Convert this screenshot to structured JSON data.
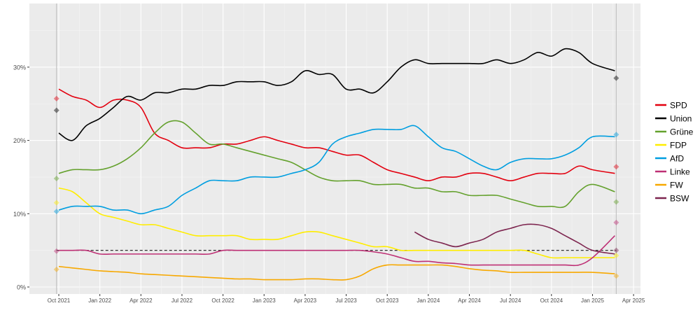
{
  "chart_data": {
    "type": "line",
    "title": "",
    "xlabel": "",
    "ylabel": "",
    "ylim": [
      0,
      38
    ],
    "y_ticks": [
      "0%",
      "10%",
      "20%",
      "30%"
    ],
    "y_tick_values": [
      0,
      10,
      20,
      30
    ],
    "x_ticks": [
      "Oct 2021",
      "Jan 2022",
      "Apr 2022",
      "Jul 2022",
      "Oct 2022",
      "Jan 2023",
      "Apr 2023",
      "Jul 2023",
      "Oct 2023",
      "Jan 2024",
      "Apr 2024",
      "Jul 2024",
      "Oct 2024",
      "Jan 2025",
      "Apr 2025"
    ],
    "x_tick_dates": [
      "2021-10",
      "2022-01",
      "2022-04",
      "2022-07",
      "2022-10",
      "2023-01",
      "2023-04",
      "2023-07",
      "2023-10",
      "2024-01",
      "2024-04",
      "2024-07",
      "2024-10",
      "2025-01",
      "2025-04"
    ],
    "grid": true,
    "legend": "right",
    "threshold_line": {
      "value": 5,
      "style": "dashed"
    },
    "election_dates": [
      "2021-09-26",
      "2025-02-23"
    ],
    "trend_start": "2021-10",
    "series": [
      {
        "name": "SPD",
        "color": "#e3000f",
        "values": [
          27,
          26,
          25.5,
          24.5,
          25.5,
          25.5,
          24.5,
          21,
          20,
          19,
          19,
          19,
          19.5,
          19.5,
          20,
          20.5,
          20,
          19.5,
          19,
          19,
          18.5,
          18,
          18,
          17,
          16,
          15.5,
          15,
          14.5,
          15,
          15,
          15.5,
          15.5,
          15,
          14.5,
          15,
          15.5,
          15.5,
          15.5,
          16.5,
          16,
          15.5
        ],
        "results": [
          25.7,
          16.4
        ]
      },
      {
        "name": "Union",
        "color": "#000000",
        "values": [
          21,
          20,
          22,
          23,
          24.5,
          26,
          25.5,
          26.5,
          26.5,
          27,
          27,
          27.5,
          27.5,
          28,
          28,
          28,
          27.5,
          28,
          29.5,
          29,
          29,
          27,
          27,
          26.5,
          28,
          30,
          31,
          30.5,
          30.5,
          30.5,
          30.5,
          30.5,
          31,
          30.5,
          31,
          32,
          31.5,
          32.5,
          32,
          30.5,
          29.5
        ],
        "results": [
          24.1,
          28.5
        ]
      },
      {
        "name": "Grüne",
        "color": "#64a12d",
        "values": [
          15.5,
          16,
          16,
          16,
          16.5,
          17.5,
          19,
          21,
          22.5,
          22.5,
          21,
          19.5,
          19.5,
          19,
          18.5,
          18,
          17.5,
          17,
          16,
          15,
          14.5,
          14.5,
          14.5,
          14,
          14,
          14,
          13.5,
          13.5,
          13,
          13,
          12.5,
          12.5,
          12.5,
          12,
          11.5,
          11,
          11,
          11,
          13,
          14,
          13
        ],
        "results": [
          14.8,
          11.6
        ]
      },
      {
        "name": "FDP",
        "color": "#ffed00",
        "values": [
          13.5,
          13,
          11.5,
          10,
          9.5,
          9,
          8.5,
          8.5,
          8,
          7.5,
          7,
          7,
          7,
          7,
          6.5,
          6.5,
          6.5,
          7,
          7.5,
          7.5,
          7,
          6.5,
          6,
          5.5,
          5.5,
          5,
          5,
          5,
          5,
          5,
          5,
          5,
          5,
          5,
          5,
          4.5,
          4,
          4,
          4,
          4,
          4
        ],
        "results": [
          11.5,
          4.3
        ]
      },
      {
        "name": "AfD",
        "color": "#009ee0",
        "values": [
          10.5,
          11,
          11,
          11,
          10.5,
          10.5,
          10,
          10.5,
          11,
          12.5,
          13.5,
          14.5,
          14.5,
          14.5,
          15,
          15,
          15,
          15.5,
          16,
          17,
          19.5,
          20.5,
          21,
          21.5,
          21.5,
          21.5,
          22,
          20.5,
          19,
          18.5,
          17.5,
          16.5,
          16,
          17,
          17.5,
          17.5,
          17.5,
          18,
          19,
          20.5,
          20.5
        ],
        "results": [
          10.3,
          20.8
        ]
      },
      {
        "name": "Linke",
        "color": "#be3075",
        "values": [
          5,
          5,
          5,
          4.5,
          4.5,
          4.5,
          4.5,
          4.5,
          4.5,
          4.5,
          4.5,
          4.5,
          5,
          5,
          5,
          5,
          5,
          5,
          5,
          5,
          5,
          5,
          5,
          4.8,
          4.5,
          4,
          3.5,
          3.5,
          3.3,
          3.2,
          3,
          3,
          3,
          3,
          3,
          3,
          3,
          3,
          3,
          4,
          7
        ],
        "results": [
          4.9,
          8.8
        ]
      },
      {
        "name": "FW",
        "color": "#f7a800",
        "values": [
          2.8,
          2.6,
          2.4,
          2.2,
          2.1,
          2,
          1.8,
          1.7,
          1.6,
          1.5,
          1.4,
          1.3,
          1.2,
          1.1,
          1.1,
          1,
          1,
          1,
          1.1,
          1.1,
          1,
          1,
          1.5,
          2.5,
          3,
          3,
          3,
          3,
          3,
          2.8,
          2.5,
          2.3,
          2.2,
          2,
          2,
          2,
          2,
          2,
          2,
          2,
          1.8
        ],
        "results": [
          2.4,
          1.5
        ]
      },
      {
        "name": "BSW",
        "color": "#7d254f",
        "values": [
          null,
          null,
          null,
          null,
          null,
          null,
          null,
          null,
          null,
          null,
          null,
          null,
          null,
          null,
          null,
          null,
          null,
          null,
          null,
          null,
          null,
          null,
          null,
          null,
          null,
          null,
          7.5,
          6.5,
          6,
          5.5,
          6,
          6.5,
          7.5,
          8,
          8.5,
          8.5,
          8,
          7,
          6,
          5,
          4.5
        ],
        "results": [
          null,
          5.0
        ]
      }
    ]
  }
}
